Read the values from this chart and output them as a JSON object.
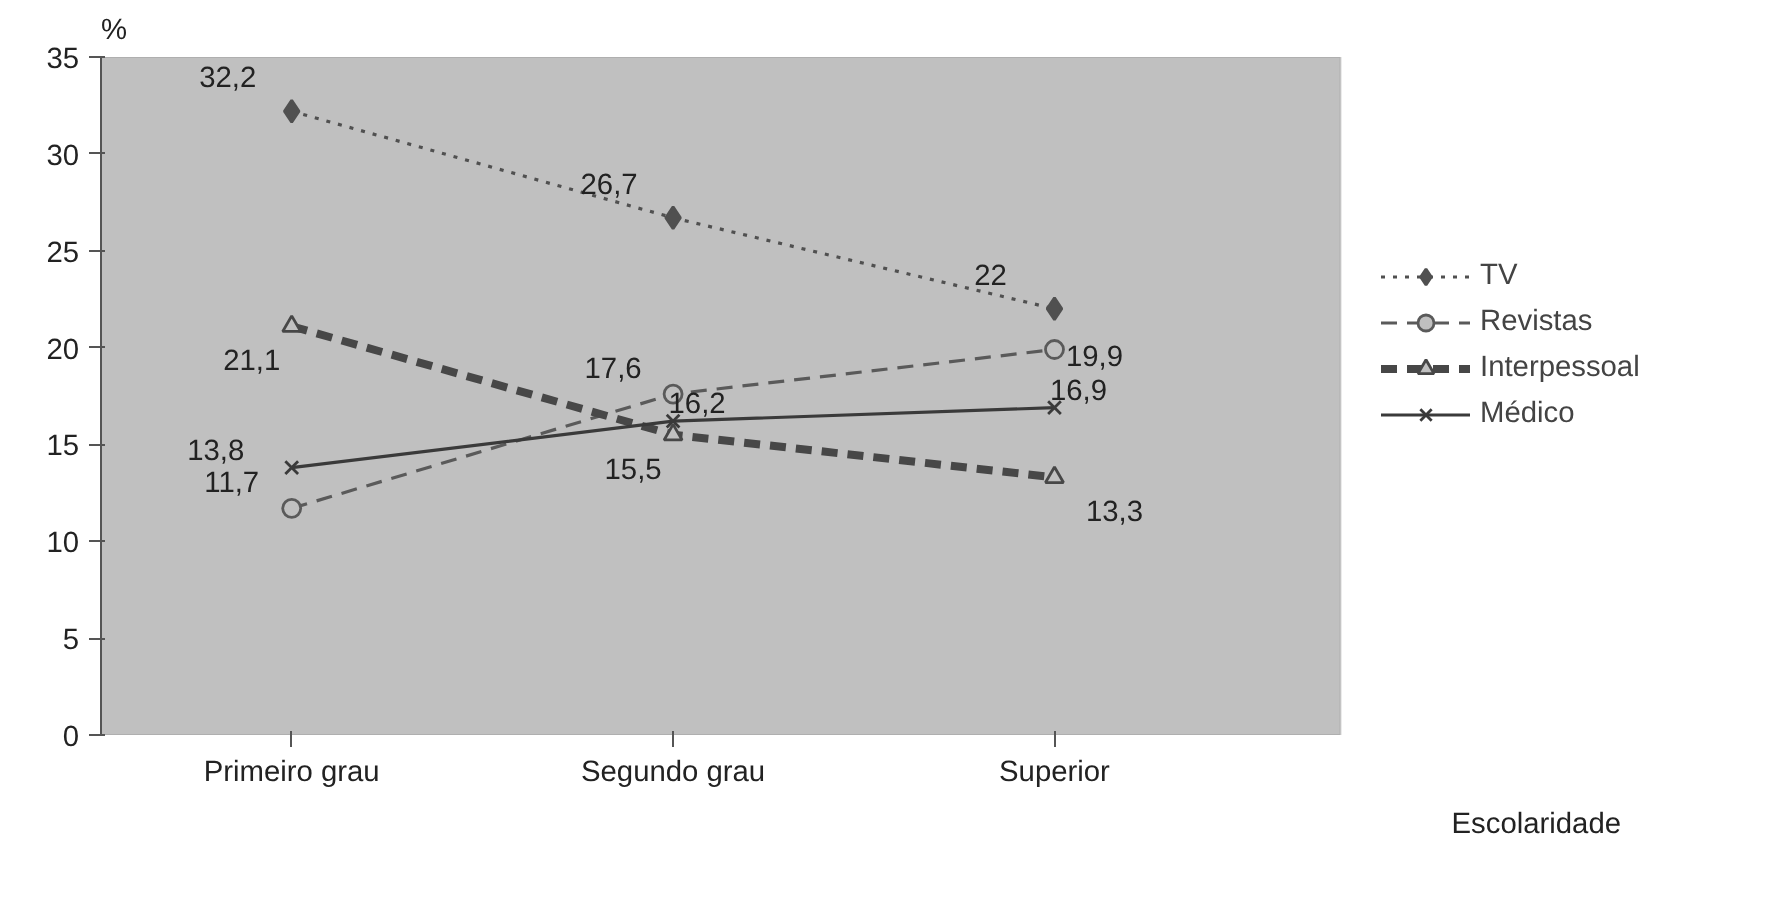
{
  "chart_data": {
    "type": "line",
    "xlabel": "Escolaridade",
    "ylabel": "%",
    "categories": [
      "Primeiro grau",
      "Segundo grau",
      "Superior"
    ],
    "ylim": [
      0,
      35
    ],
    "yticks": [
      0,
      5,
      10,
      15,
      20,
      25,
      30,
      35
    ],
    "grid": false,
    "legend": "right",
    "series": [
      {
        "name": "TV",
        "color": "#505050",
        "values": [
          32.2,
          26.7,
          22
        ],
        "value_labels": [
          "32,2",
          "26,7",
          "22"
        ],
        "marker": "diamond",
        "line_style": "dotted"
      },
      {
        "name": "Revistas",
        "color": "#5a5a5a",
        "values": [
          11.7,
          17.6,
          19.9
        ],
        "value_labels": [
          "11,7",
          "17,6",
          "19,9"
        ],
        "marker": "circle",
        "line_style": "dashed"
      },
      {
        "name": "Interpessoal",
        "color": "#474747",
        "values": [
          21.1,
          15.5,
          13.3
        ],
        "value_labels": [
          "21,1",
          "15,5",
          "13,3"
        ],
        "marker": "triangle",
        "line_style": "dashed"
      },
      {
        "name": "Médico",
        "color": "#3a3a3a",
        "values": [
          13.8,
          16.2,
          16.9
        ],
        "value_labels": [
          "13,8",
          "16,2",
          "16,9"
        ],
        "marker": "cross",
        "line_style": "solid"
      }
    ]
  }
}
